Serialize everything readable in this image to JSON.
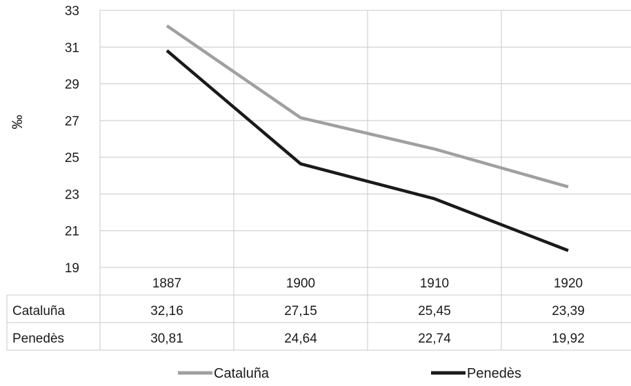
{
  "chart_data": {
    "type": "line",
    "title": "",
    "ylabel": "‰",
    "xlabel": "",
    "categories": [
      "1887",
      "1900",
      "1910",
      "1920"
    ],
    "ylim": [
      19,
      33
    ],
    "yticks": [
      19,
      21,
      23,
      25,
      27,
      29,
      31,
      33
    ],
    "grid": true,
    "legend_position": "bottom",
    "series": [
      {
        "name": "Cataluña",
        "values": [
          32.16,
          27.15,
          25.45,
          23.39
        ],
        "labels": [
          "32,16",
          "27,15",
          "25,45",
          "23,39"
        ],
        "color": "#a0a0a0"
      },
      {
        "name": "Penedès",
        "values": [
          30.81,
          24.64,
          22.74,
          19.92
        ],
        "labels": [
          "30,81",
          "24,64",
          "22,74",
          "19,92"
        ],
        "color": "#1a1a1a"
      }
    ],
    "data_table": true
  }
}
